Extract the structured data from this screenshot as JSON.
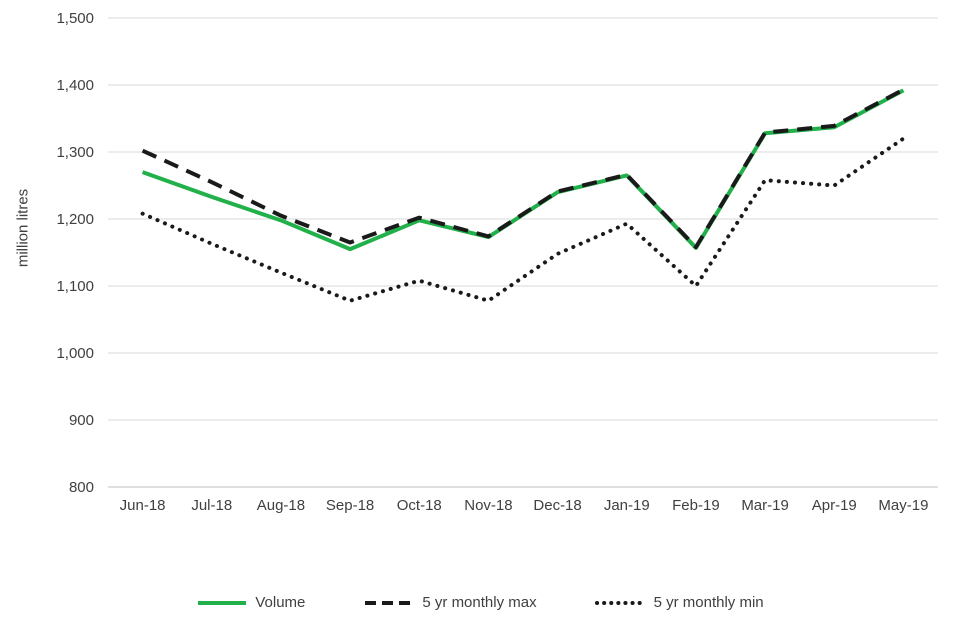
{
  "chart_data": {
    "type": "line",
    "title": "",
    "xlabel": "",
    "ylabel": "million litres",
    "ylim": [
      800,
      1500
    ],
    "ytick_step": 100,
    "grid": true,
    "legend_position": "bottom",
    "categories": [
      "Jun-18",
      "Jul-18",
      "Aug-18",
      "Sep-18",
      "Oct-18",
      "Nov-18",
      "Dec-18",
      "Jan-19",
      "Feb-19",
      "Mar-19",
      "Apr-19",
      "May-19"
    ],
    "series": [
      {
        "name": "Volume",
        "style": "solid",
        "color": "#22b04b",
        "width": 4,
        "values": [
          1270,
          1233,
          1198,
          1155,
          1198,
          1173,
          1240,
          1265,
          1157,
          1328,
          1337,
          1392
        ]
      },
      {
        "name": "5 yr monthly max",
        "style": "dashed",
        "color": "#1a1a1a",
        "width": 4,
        "values": [
          1302,
          1255,
          1205,
          1165,
          1202,
          1174,
          1241,
          1266,
          1158,
          1329,
          1339,
          1393
        ]
      },
      {
        "name": "5 yr monthly min",
        "style": "dotted",
        "color": "#1a1a1a",
        "width": 4,
        "values": [
          1208,
          1163,
          1120,
          1078,
          1108,
          1078,
          1148,
          1193,
          1100,
          1258,
          1250,
          1320
        ]
      }
    ],
    "colors": {
      "grid": "#d9d9d9",
      "axis": "#bfbfbf",
      "text": "#404040"
    }
  }
}
